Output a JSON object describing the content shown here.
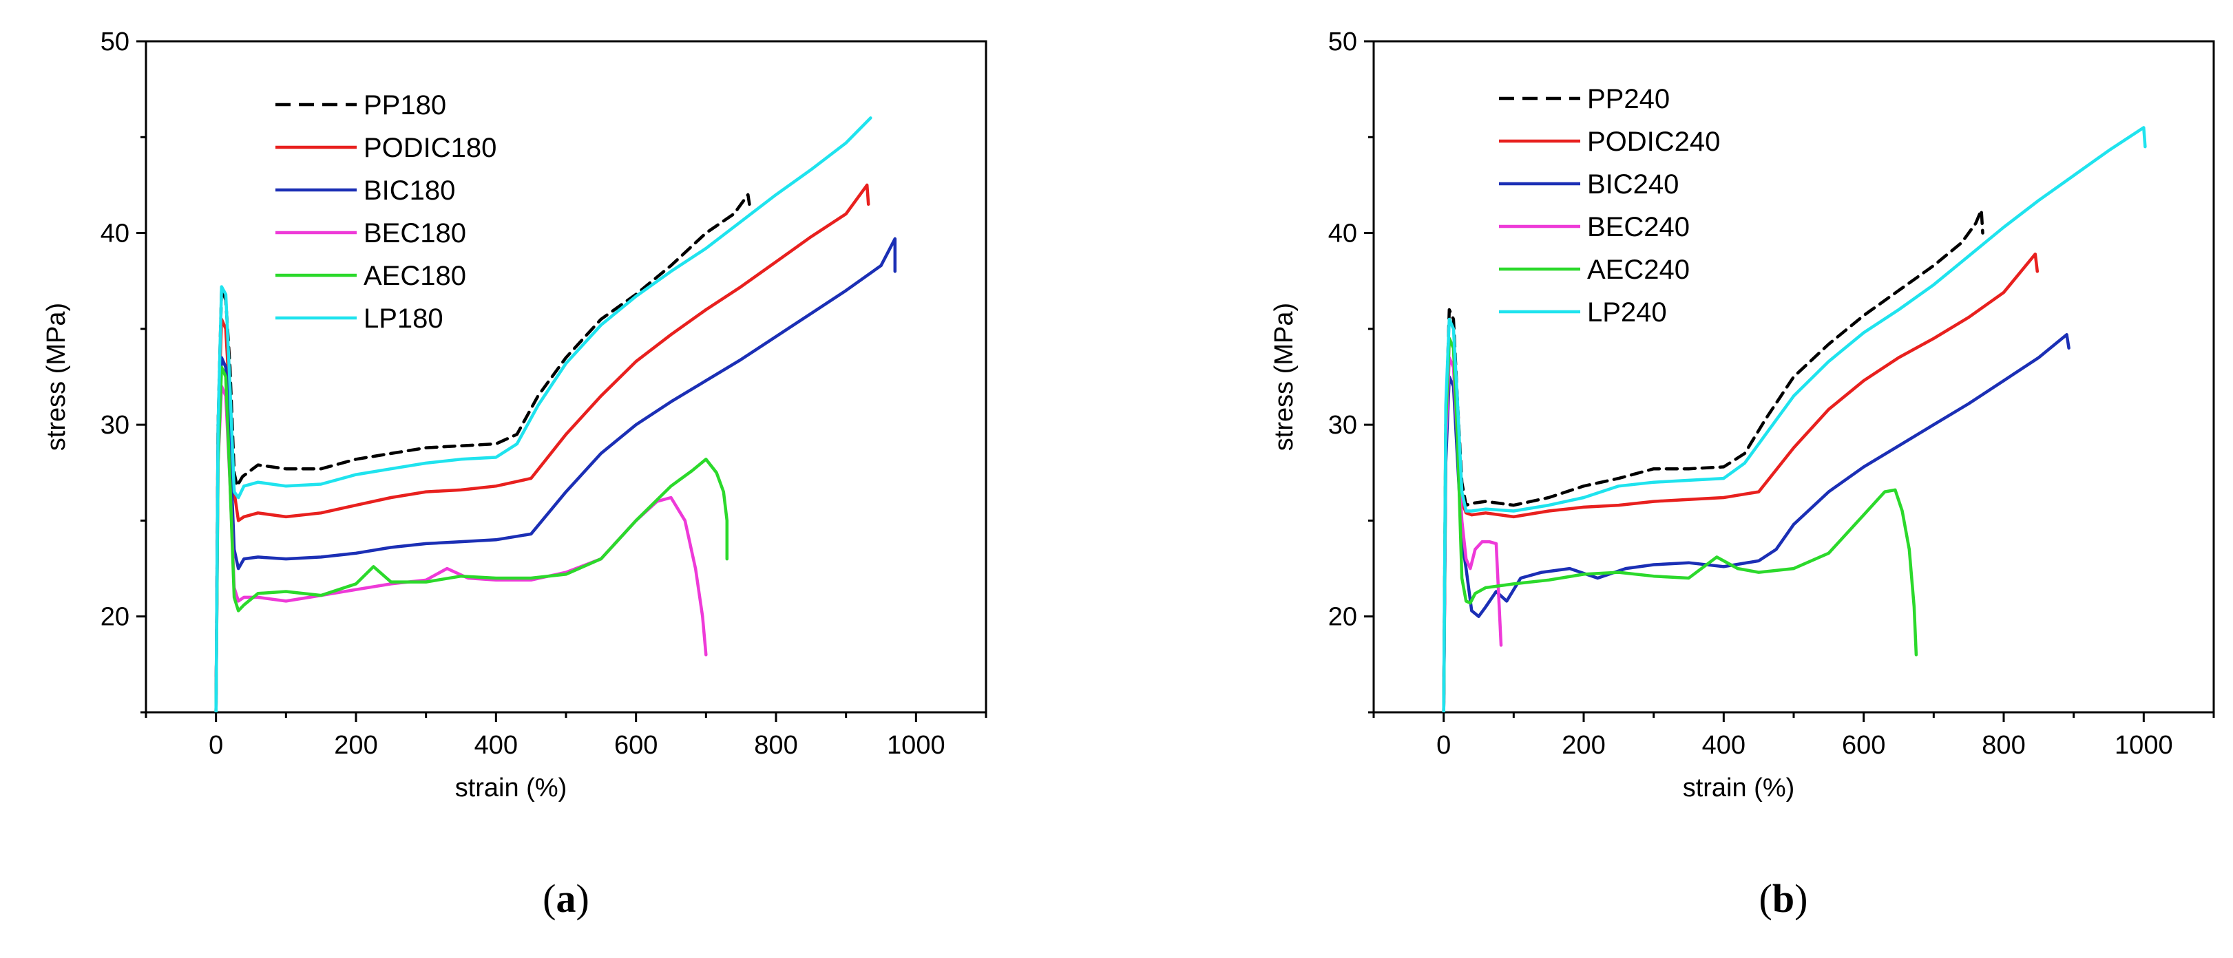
{
  "chart_data": [
    {
      "type": "line",
      "panel": "a",
      "panel_label": "a",
      "xlabel": "strain (%)",
      "ylabel": "stress (MPa)",
      "xlim": [
        -100,
        1100
      ],
      "ylim": [
        15,
        50
      ],
      "xticks": [
        0,
        200,
        400,
        600,
        800,
        1000
      ],
      "yticks": [
        20,
        30,
        40,
        50
      ],
      "legend_position": "top-left",
      "series": [
        {
          "name": "PP180",
          "color": "#000000",
          "dash": "dashed",
          "x": [
            0,
            3,
            8,
            14,
            20,
            26,
            30,
            38,
            60,
            100,
            150,
            200,
            250,
            300,
            350,
            400,
            430,
            460,
            500,
            550,
            600,
            650,
            700,
            740,
            760,
            762
          ],
          "y": [
            15,
            30,
            37.1,
            36.5,
            33,
            27.5,
            26.8,
            27.3,
            27.9,
            27.7,
            27.7,
            28.2,
            28.5,
            28.8,
            28.9,
            29,
            29.5,
            31.5,
            33.5,
            35.5,
            36.8,
            38.3,
            40,
            41,
            42,
            41.5
          ]
        },
        {
          "name": "PODIC180",
          "color": "#e8201e",
          "dash": "solid",
          "x": [
            0,
            3,
            8,
            14,
            20,
            26,
            32,
            40,
            60,
            100,
            150,
            200,
            250,
            300,
            350,
            400,
            450,
            500,
            550,
            600,
            650,
            700,
            750,
            800,
            850,
            900,
            930,
            932
          ],
          "y": [
            15,
            30,
            35.5,
            35,
            31,
            26.5,
            25,
            25.2,
            25.4,
            25.2,
            25.4,
            25.8,
            26.2,
            26.5,
            26.6,
            26.8,
            27.2,
            29.5,
            31.5,
            33.3,
            34.7,
            36,
            37.2,
            38.5,
            39.8,
            41,
            42.5,
            41.5
          ]
        },
        {
          "name": "BIC180",
          "color": "#1b2fb5",
          "dash": "solid",
          "x": [
            0,
            3,
            8,
            14,
            20,
            26,
            32,
            40,
            60,
            100,
            150,
            200,
            250,
            300,
            350,
            400,
            450,
            500,
            550,
            600,
            650,
            700,
            750,
            800,
            850,
            900,
            950,
            970,
            970
          ],
          "y": [
            15,
            29,
            33.5,
            33,
            29,
            23.5,
            22.5,
            23,
            23.1,
            23,
            23.1,
            23.3,
            23.6,
            23.8,
            23.9,
            24,
            24.3,
            26.5,
            28.5,
            30,
            31.2,
            32.3,
            33.4,
            34.6,
            35.8,
            37,
            38.3,
            39.7,
            38
          ]
        },
        {
          "name": "BEC180",
          "color": "#ee3ad8",
          "dash": "solid",
          "x": [
            0,
            3,
            8,
            14,
            20,
            26,
            32,
            40,
            60,
            100,
            150,
            200,
            250,
            300,
            330,
            360,
            400,
            450,
            500,
            550,
            600,
            630,
            650,
            670,
            685,
            695,
            700
          ],
          "y": [
            15,
            28,
            32,
            31.5,
            27,
            21.5,
            20.8,
            21,
            21,
            20.8,
            21.1,
            21.4,
            21.7,
            21.9,
            22.5,
            22,
            21.9,
            21.9,
            22.3,
            23,
            25,
            26,
            26.2,
            25,
            22.5,
            20,
            18
          ]
        },
        {
          "name": "AEC180",
          "color": "#2bd92b",
          "dash": "solid",
          "x": [
            0,
            3,
            8,
            14,
            20,
            26,
            32,
            40,
            60,
            100,
            150,
            200,
            225,
            250,
            300,
            350,
            400,
            450,
            500,
            550,
            600,
            650,
            680,
            700,
            715,
            725,
            730,
            730
          ],
          "y": [
            15,
            28,
            33,
            32.5,
            27,
            21,
            20.3,
            20.6,
            21.2,
            21.3,
            21.1,
            21.7,
            22.6,
            21.8,
            21.8,
            22.1,
            22,
            22,
            22.2,
            23,
            25,
            26.8,
            27.6,
            28.2,
            27.5,
            26.5,
            25,
            23
          ]
        },
        {
          "name": "LP180",
          "color": "#1fe3ee",
          "dash": "solid",
          "x": [
            0,
            3,
            8,
            14,
            20,
            26,
            32,
            40,
            60,
            100,
            150,
            200,
            250,
            300,
            350,
            400,
            430,
            460,
            500,
            550,
            600,
            650,
            700,
            750,
            800,
            850,
            900,
            935
          ],
          "y": [
            15,
            30,
            37.2,
            36.8,
            32,
            26.5,
            26.2,
            26.8,
            27,
            26.8,
            26.9,
            27.4,
            27.7,
            28,
            28.2,
            28.3,
            29,
            31,
            33.2,
            35.2,
            36.7,
            38,
            39.2,
            40.6,
            42,
            43.3,
            44.7,
            46
          ]
        }
      ]
    },
    {
      "type": "line",
      "panel": "b",
      "panel_label": "b",
      "xlabel": "strain (%)",
      "ylabel": "stress (MPa)",
      "xlim": [
        -100,
        1100
      ],
      "ylim": [
        15,
        50
      ],
      "xticks": [
        0,
        200,
        400,
        600,
        800,
        1000
      ],
      "yticks": [
        20,
        30,
        40,
        50
      ],
      "legend_position": "top-left",
      "series": [
        {
          "name": "PP240",
          "color": "#000000",
          "dash": "dashed",
          "x": [
            0,
            3,
            8,
            14,
            20,
            26,
            32,
            40,
            60,
            100,
            150,
            200,
            250,
            300,
            350,
            400,
            430,
            460,
            500,
            550,
            600,
            650,
            700,
            740,
            760,
            768,
            770
          ],
          "y": [
            15,
            30,
            36,
            35.5,
            31,
            27,
            25.8,
            25.9,
            26,
            25.8,
            26.2,
            26.8,
            27.2,
            27.7,
            27.7,
            27.8,
            28.5,
            30.3,
            32.5,
            34.2,
            35.7,
            37,
            38.3,
            39.5,
            40.5,
            41.2,
            40
          ]
        },
        {
          "name": "PODIC240",
          "color": "#e8201e",
          "dash": "solid",
          "x": [
            0,
            3,
            8,
            14,
            20,
            26,
            32,
            40,
            60,
            100,
            150,
            200,
            250,
            300,
            350,
            400,
            450,
            500,
            550,
            600,
            650,
            700,
            750,
            800,
            845,
            848
          ],
          "y": [
            15,
            29,
            34.5,
            34,
            30,
            26,
            25.4,
            25.3,
            25.4,
            25.2,
            25.5,
            25.7,
            25.8,
            26,
            26.1,
            26.2,
            26.5,
            28.8,
            30.8,
            32.3,
            33.5,
            34.5,
            35.6,
            36.9,
            38.9,
            38
          ]
        },
        {
          "name": "BIC240",
          "color": "#1b2fb5",
          "dash": "solid",
          "x": [
            0,
            3,
            8,
            14,
            20,
            26,
            32,
            40,
            50,
            60,
            75,
            90,
            110,
            140,
            180,
            220,
            260,
            300,
            350,
            400,
            450,
            475,
            500,
            550,
            600,
            650,
            700,
            750,
            800,
            850,
            890,
            893
          ],
          "y": [
            15,
            28,
            32.5,
            32,
            28,
            24,
            22.5,
            20.3,
            20,
            20.5,
            21.3,
            20.8,
            22,
            22.3,
            22.5,
            22,
            22.5,
            22.7,
            22.8,
            22.6,
            22.9,
            23.5,
            24.8,
            26.5,
            27.8,
            28.9,
            30,
            31.1,
            32.3,
            33.5,
            34.7,
            34
          ]
        },
        {
          "name": "BEC240",
          "color": "#ee3ad8",
          "dash": "solid",
          "x": [
            0,
            3,
            8,
            14,
            20,
            26,
            32,
            38,
            45,
            55,
            65,
            75,
            80,
            82
          ],
          "y": [
            15,
            29,
            33.5,
            33,
            29,
            25,
            23,
            22.5,
            23.5,
            23.9,
            23.9,
            23.8,
            20,
            18.5
          ]
        },
        {
          "name": "AEC240",
          "color": "#2bd92b",
          "dash": "solid",
          "x": [
            0,
            3,
            8,
            14,
            20,
            26,
            32,
            38,
            45,
            60,
            100,
            150,
            200,
            250,
            300,
            350,
            390,
            420,
            450,
            500,
            550,
            600,
            630,
            645,
            655,
            665,
            672,
            675
          ],
          "y": [
            15,
            30,
            34.5,
            34,
            29,
            22,
            20.8,
            20.7,
            21.2,
            21.5,
            21.7,
            21.9,
            22.2,
            22.3,
            22.1,
            22,
            23.1,
            22.5,
            22.3,
            22.5,
            23.3,
            25.3,
            26.5,
            26.6,
            25.5,
            23.5,
            20.5,
            18
          ]
        },
        {
          "name": "LP240",
          "color": "#1fe3ee",
          "dash": "solid",
          "x": [
            0,
            3,
            8,
            14,
            20,
            26,
            32,
            40,
            60,
            100,
            150,
            200,
            250,
            300,
            350,
            400,
            430,
            460,
            500,
            550,
            600,
            650,
            700,
            750,
            800,
            850,
            900,
            950,
            1000,
            1002
          ],
          "y": [
            15,
            31,
            35.5,
            35,
            31,
            26.5,
            25.5,
            25.5,
            25.6,
            25.5,
            25.8,
            26.2,
            26.8,
            27,
            27.1,
            27.2,
            28,
            29.5,
            31.5,
            33.3,
            34.8,
            36,
            37.3,
            38.8,
            40.3,
            41.7,
            43,
            44.3,
            45.5,
            44.5
          ]
        }
      ]
    }
  ]
}
